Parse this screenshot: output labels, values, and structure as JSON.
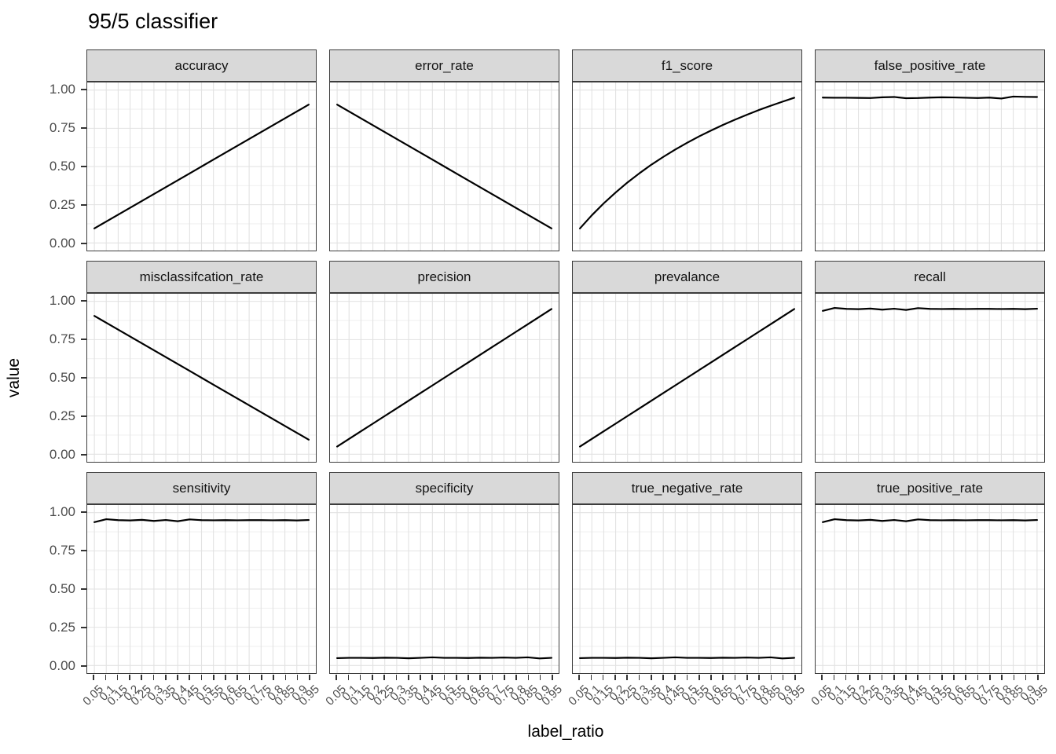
{
  "title": "95/5 classifier",
  "chart_data": {
    "type": "line",
    "title": "95/5 classifier",
    "xlabel": "label_ratio",
    "ylabel": "value",
    "facet_layout": {
      "ncol": 4,
      "nrow": 3
    },
    "grid": true,
    "legend": "none",
    "ylim": [
      0,
      1
    ],
    "x": [
      0.05,
      0.1,
      0.15,
      0.2,
      0.25,
      0.3,
      0.35,
      0.4,
      0.45,
      0.5,
      0.55,
      0.6,
      0.65,
      0.7,
      0.75,
      0.8,
      0.85,
      0.9,
      0.95
    ],
    "x_tick_labels": [
      "0.05",
      "0.1",
      "0.15",
      "0.2",
      "0.25",
      "0.3",
      "0.35",
      "0.4",
      "0.45",
      "0.5",
      "0.55",
      "0.6",
      "0.65",
      "0.7",
      "0.75",
      "0.8",
      "0.85",
      "0.9",
      "0.95"
    ],
    "y_ticks": [
      {
        "label": "1.00",
        "value": 1.0
      },
      {
        "label": "0.75",
        "value": 0.75
      },
      {
        "label": "0.50",
        "value": 0.5
      },
      {
        "label": "0.25",
        "value": 0.25
      },
      {
        "label": "0.00",
        "value": 0.0
      }
    ],
    "y_minor_ticks": [
      0.125,
      0.375,
      0.625,
      0.875
    ],
    "colors": {
      "line": "#000000",
      "strip_fill": "#d9d9d9",
      "strip_border": "#3d3d3d",
      "panel_border": "#3d3d3d",
      "grid_major": "#e2e2e2",
      "grid_minor": "#ededed",
      "axis_text": "#4d4d4d",
      "tick": "#333333"
    },
    "facets": [
      {
        "name": "accuracy",
        "values": [
          0.095,
          0.14,
          0.185,
          0.23,
          0.275,
          0.32,
          0.365,
          0.41,
          0.455,
          0.5,
          0.545,
          0.59,
          0.635,
          0.68,
          0.725,
          0.77,
          0.815,
          0.86,
          0.905
        ]
      },
      {
        "name": "error_rate",
        "values": [
          0.905,
          0.86,
          0.815,
          0.77,
          0.725,
          0.68,
          0.635,
          0.59,
          0.545,
          0.5,
          0.455,
          0.41,
          0.365,
          0.32,
          0.275,
          0.23,
          0.185,
          0.14,
          0.095
        ]
      },
      {
        "name": "f1_score",
        "values": [
          0.095,
          0.181,
          0.259,
          0.33,
          0.396,
          0.456,
          0.512,
          0.563,
          0.611,
          0.655,
          0.697,
          0.735,
          0.772,
          0.806,
          0.838,
          0.869,
          0.897,
          0.924,
          0.95
        ]
      },
      {
        "name": "false_positive_rate",
        "values": [
          0.951,
          0.95,
          0.95,
          0.949,
          0.948,
          0.953,
          0.955,
          0.947,
          0.948,
          0.951,
          0.953,
          0.952,
          0.95,
          0.948,
          0.951,
          0.945,
          0.958,
          0.956,
          0.955
        ]
      },
      {
        "name": "misclassifcation_rate",
        "values": [
          0.905,
          0.86,
          0.815,
          0.77,
          0.725,
          0.68,
          0.635,
          0.59,
          0.545,
          0.5,
          0.455,
          0.41,
          0.365,
          0.32,
          0.275,
          0.23,
          0.185,
          0.14,
          0.095
        ]
      },
      {
        "name": "precision",
        "values": [
          0.05,
          0.1,
          0.15,
          0.2,
          0.25,
          0.3,
          0.35,
          0.4,
          0.45,
          0.5,
          0.55,
          0.6,
          0.65,
          0.7,
          0.75,
          0.8,
          0.85,
          0.9,
          0.95
        ]
      },
      {
        "name": "prevalance",
        "values": [
          0.05,
          0.1,
          0.15,
          0.2,
          0.25,
          0.3,
          0.35,
          0.4,
          0.45,
          0.5,
          0.55,
          0.6,
          0.65,
          0.7,
          0.75,
          0.8,
          0.85,
          0.9,
          0.95
        ]
      },
      {
        "name": "recall",
        "values": [
          0.938,
          0.957,
          0.951,
          0.949,
          0.953,
          0.946,
          0.952,
          0.944,
          0.956,
          0.951,
          0.95,
          0.951,
          0.95,
          0.951,
          0.951,
          0.95,
          0.951,
          0.949,
          0.952
        ]
      },
      {
        "name": "sensitivity",
        "values": [
          0.938,
          0.957,
          0.951,
          0.949,
          0.953,
          0.946,
          0.952,
          0.944,
          0.956,
          0.951,
          0.95,
          0.951,
          0.95,
          0.951,
          0.951,
          0.95,
          0.951,
          0.949,
          0.952
        ]
      },
      {
        "name": "specificity",
        "values": [
          0.048,
          0.05,
          0.05,
          0.049,
          0.051,
          0.05,
          0.047,
          0.05,
          0.053,
          0.05,
          0.05,
          0.049,
          0.051,
          0.05,
          0.052,
          0.05,
          0.053,
          0.046,
          0.05
        ]
      },
      {
        "name": "true_negative_rate",
        "values": [
          0.048,
          0.05,
          0.05,
          0.049,
          0.051,
          0.05,
          0.047,
          0.05,
          0.053,
          0.05,
          0.05,
          0.049,
          0.051,
          0.05,
          0.052,
          0.05,
          0.053,
          0.046,
          0.05
        ]
      },
      {
        "name": "true_positive_rate",
        "values": [
          0.938,
          0.957,
          0.951,
          0.949,
          0.953,
          0.946,
          0.952,
          0.944,
          0.956,
          0.951,
          0.95,
          0.951,
          0.95,
          0.951,
          0.951,
          0.95,
          0.951,
          0.949,
          0.952
        ]
      }
    ]
  }
}
